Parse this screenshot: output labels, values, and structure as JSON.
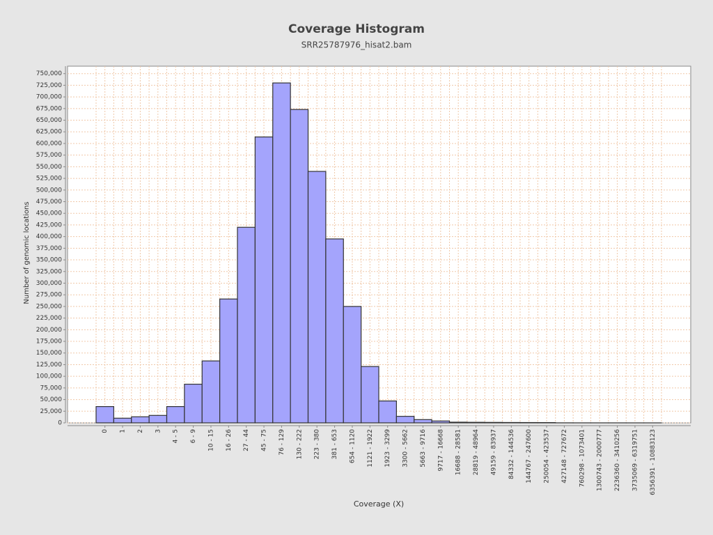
{
  "chart_data": {
    "type": "bar",
    "title": "Coverage Histogram",
    "subtitle": "SRR25787976_hisat2.bam",
    "x_label": "Coverage (X)",
    "y_label": "Number of genomic locations",
    "categories": [
      "0",
      "1",
      "2",
      "3",
      "4 - 5",
      "6 - 9",
      "10 - 15",
      "16 - 26",
      "27 - 44",
      "45 - 75",
      "76 - 129",
      "130 - 222",
      "223 - 380",
      "381 - 653",
      "654 - 1120",
      "1121 - 1922",
      "1923 - 3299",
      "3300 - 5662",
      "5663 - 9716",
      "9717 - 16668",
      "16688 - 28581",
      "28819 - 48964",
      "49159 - 83937",
      "84332 - 144536",
      "144767 - 247600",
      "250054 - 423537",
      "427148 - 727672",
      "760298 - 1073401",
      "1300743 - 2000777",
      "2236360 - 3410256",
      "3735069 - 6319751",
      "6356391 - 10883123"
    ],
    "values": [
      35000,
      10000,
      13000,
      16000,
      35000,
      83000,
      133000,
      266000,
      420000,
      614000,
      730000,
      673000,
      540000,
      395000,
      250000,
      121000,
      47000,
      14000,
      7000,
      4000,
      1500,
      1200,
      1000,
      800,
      700,
      600,
      100,
      50,
      30,
      20,
      10,
      5
    ],
    "color": "#a4a4fc",
    "ylim": [
      0,
      766000
    ],
    "yticks": [
      0,
      {
        "value": 25000,
        "label": "25,000"
      },
      {
        "value": 50000,
        "label": "50,000"
      },
      {
        "value": 75000,
        "label": "75,000"
      },
      {
        "value": 100000,
        "label": "100,000"
      },
      {
        "value": 125000,
        "label": "125,000"
      },
      {
        "value": 150000,
        "label": "150,000"
      },
      {
        "value": 175000,
        "label": "175,000"
      },
      {
        "value": 200000,
        "label": "200,000"
      },
      {
        "value": 225000,
        "label": "225,000"
      },
      {
        "value": 250000,
        "label": "250,000"
      },
      {
        "value": 275000,
        "label": "275,000"
      },
      {
        "value": 300000,
        "label": "300,000"
      },
      {
        "value": 325000,
        "label": "325,000"
      },
      {
        "value": 350000,
        "label": "350,000"
      },
      {
        "value": 375000,
        "label": "375,000"
      },
      {
        "value": 400000,
        "label": "400,000"
      },
      {
        "value": 425000,
        "label": "425,000"
      },
      {
        "value": 450000,
        "label": "450,000"
      },
      {
        "value": 475000,
        "label": "475,000"
      },
      {
        "value": 500000,
        "label": "500,000"
      },
      {
        "value": 525000,
        "label": "525,000"
      },
      {
        "value": 550000,
        "label": "550,000"
      },
      {
        "value": 575000,
        "label": "575,000"
      },
      {
        "value": 600000,
        "label": "600,000"
      },
      {
        "value": 625000,
        "label": "625,000"
      },
      {
        "value": 650000,
        "label": "650,000"
      },
      {
        "value": 675000,
        "label": "675,000"
      },
      {
        "value": 700000,
        "label": "700,000"
      },
      {
        "value": 725000,
        "label": "725,000"
      },
      {
        "value": 750000,
        "label": "750,000"
      }
    ],
    "grid": true
  }
}
